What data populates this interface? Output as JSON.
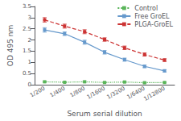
{
  "chart_data": {
    "type": "line",
    "xlabel": "Serum serial dilution",
    "ylabel": "OD 495 nm",
    "categories": [
      "1/200",
      "1/400",
      "1/800",
      "1/1600",
      "1/3200",
      "1/6400",
      "1/12800"
    ],
    "series": [
      {
        "name": "Control",
        "color": "#5ab55a",
        "line_style": "dotted",
        "marker": "square",
        "values": [
          0.13,
          0.11,
          0.13,
          0.1,
          0.12,
          0.09,
          0.1
        ],
        "errors": [
          0.03,
          0.02,
          0.03,
          0.02,
          0.03,
          0.02,
          0.02
        ]
      },
      {
        "name": "Free GroEL",
        "color": "#6699cc",
        "line_style": "solid",
        "marker": "square",
        "values": [
          2.45,
          2.28,
          1.9,
          1.45,
          1.12,
          0.82,
          0.62
        ],
        "errors": [
          0.1,
          0.08,
          0.09,
          0.08,
          0.07,
          0.06,
          0.05
        ]
      },
      {
        "name": "PLGA-GroEL",
        "color": "#cc3333",
        "line_style": "dashed",
        "marker": "square",
        "values": [
          2.9,
          2.62,
          2.37,
          2.02,
          1.65,
          1.35,
          1.1
        ],
        "errors": [
          0.1,
          0.09,
          0.09,
          0.08,
          0.08,
          0.07,
          0.06
        ]
      }
    ],
    "ylim": [
      0,
      3.5
    ],
    "yticks": [
      0,
      0.5,
      1,
      1.5,
      2,
      2.5,
      3,
      3.5
    ],
    "grid": false,
    "legend": "upper right"
  }
}
